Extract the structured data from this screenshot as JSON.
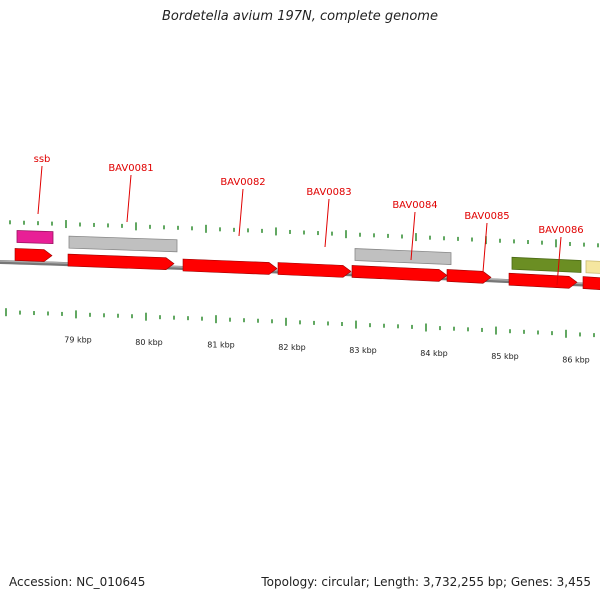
{
  "title": "Bordetella avium 197N, complete genome",
  "footer": {
    "accession": "Accession: NC_010645",
    "summary": "Topology: circular; Length: 3,732,255 bp; Genes: 3,455"
  },
  "colors": {
    "cds": "#ff0000",
    "pseudo_gray": "#c0c0c0",
    "rna_pink": "#e81f96",
    "olive": "#6b8e23",
    "pale_yellow": "#f5e6a0",
    "label": "#e00000",
    "tick_green": "#2e8b2e",
    "backbone": "#777777"
  },
  "gene_labels": [
    "ssb",
    "BAV0081",
    "BAV0082",
    "BAV0083",
    "BAV0084",
    "BAV0085",
    "BAV0086"
  ],
  "scale_labels": [
    "79 kbp",
    "80 kbp",
    "81 kbp",
    "82 kbp",
    "83 kbp",
    "84 kbp",
    "85 kbp",
    "86 kbp"
  ]
}
